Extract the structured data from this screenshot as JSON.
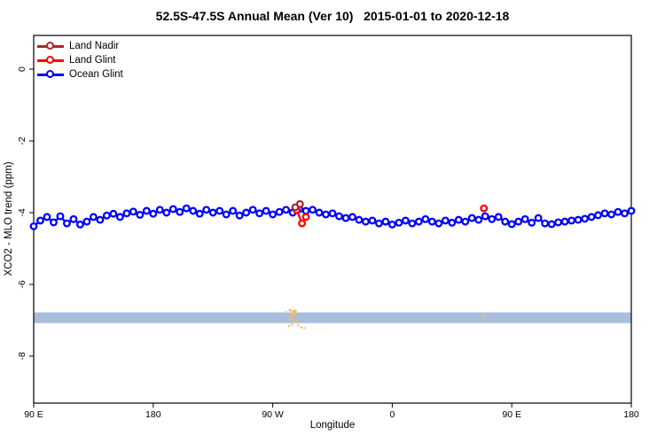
{
  "chart": {
    "title": "52.5S-47.5S Annual Mean (Ver 10)   2015-01-01 to 2020-12-18",
    "xlabel": "Longitude",
    "ylabel": "XCO2 - MLO trend (ppm)"
  },
  "legend": {
    "items": [
      {
        "label": "Land Nadir",
        "color": "#A52A2A"
      },
      {
        "label": "Land Glint",
        "color": "#FF0000"
      },
      {
        "label": "Ocean Glint",
        "color": "#0000FF"
      }
    ]
  },
  "chart_data": {
    "type": "line",
    "title": "52.5S-47.5S Annual Mean (Ver 10)   2015-01-01 to 2020-12-18",
    "xlabel": "Longitude",
    "ylabel": "XCO2 - MLO trend (ppm)",
    "x_axis": {
      "range_deg": [
        0,
        450
      ],
      "ticks_deg": [
        0,
        90,
        180,
        270,
        360,
        450
      ],
      "tick_labels": [
        "90 E",
        "180",
        "90 W",
        "0",
        "90 E",
        "180"
      ],
      "note": "axis wraps eastward starting at 90E"
    },
    "y_axis": {
      "range": [
        -9.31,
        0.94
      ],
      "ticks": [
        0,
        -2,
        -4,
        -6,
        -8
      ],
      "tick_labels": [
        "0",
        "-2",
        "-4",
        "-6",
        "-8"
      ]
    },
    "grid": false,
    "legend_position": "top-left",
    "series": [
      {
        "name": "Ocean Glint",
        "color": "#0000FF",
        "marker": "open-circle",
        "x_deg": [
          0,
          5,
          10,
          15,
          20,
          25,
          30,
          35,
          40,
          45,
          50,
          55,
          60,
          65,
          70,
          75,
          80,
          85,
          90,
          95,
          100,
          105,
          110,
          115,
          120,
          125,
          130,
          135,
          140,
          145,
          150,
          155,
          160,
          165,
          170,
          175,
          180,
          185,
          190,
          195,
          200,
          205,
          210,
          215,
          220,
          225,
          230,
          235,
          240,
          245,
          250,
          255,
          260,
          265,
          270,
          275,
          280,
          285,
          290,
          295,
          300,
          305,
          310,
          315,
          320,
          325,
          330,
          335,
          340,
          345,
          350,
          355,
          360,
          365,
          370,
          375,
          380,
          385,
          390,
          395,
          400,
          405,
          410,
          415,
          420,
          425,
          430,
          435,
          440,
          445,
          450
        ],
        "values": [
          -4.38,
          -4.22,
          -4.12,
          -4.27,
          -4.1,
          -4.3,
          -4.18,
          -4.33,
          -4.25,
          -4.12,
          -4.2,
          -4.08,
          -4.03,
          -4.12,
          -4.02,
          -3.97,
          -4.06,
          -3.95,
          -4.03,
          -3.92,
          -4.0,
          -3.9,
          -3.98,
          -3.88,
          -3.95,
          -4.03,
          -3.92,
          -4.0,
          -3.95,
          -4.05,
          -3.95,
          -4.08,
          -4.0,
          -3.92,
          -4.02,
          -3.95,
          -4.05,
          -3.98,
          -3.92,
          -4.0,
          -3.9,
          -3.95,
          -3.92,
          -4.0,
          -4.05,
          -4.02,
          -4.1,
          -4.15,
          -4.12,
          -4.2,
          -4.25,
          -4.22,
          -4.3,
          -4.25,
          -4.33,
          -4.28,
          -4.22,
          -4.3,
          -4.25,
          -4.18,
          -4.25,
          -4.3,
          -4.22,
          -4.28,
          -4.2,
          -4.25,
          -4.15,
          -4.2,
          -4.1,
          -4.18,
          -4.12,
          -4.25,
          -4.32,
          -4.25,
          -4.18,
          -4.28,
          -4.15,
          -4.3,
          -4.32,
          -4.27,
          -4.25,
          -4.22,
          -4.2,
          -4.17,
          -4.12,
          -4.07,
          -4.02,
          -4.05,
          -3.98,
          -4.02,
          -3.95
        ]
      },
      {
        "name": "Land Nadir",
        "color": "#A52A2A",
        "marker": "open-circle",
        "segments": [
          [
            {
              "deg": 197,
              "val": -3.85
            },
            {
              "deg": 200.5,
              "val": -3.76
            }
          ]
        ]
      },
      {
        "name": "Land Glint",
        "color": "#FF0000",
        "marker": "open-circle",
        "segments": [
          [
            {
              "deg": 198,
              "val": -3.93
            },
            {
              "deg": 202,
              "val": -4.3
            },
            {
              "deg": 205,
              "val": -4.12
            }
          ],
          [
            {
              "deg": 339,
              "val": -3.88
            }
          ]
        ]
      }
    ],
    "band": {
      "color": "#A9BEDD",
      "val_top": -6.78,
      "val_bottom": -7.08,
      "x_range_deg": [
        0,
        450
      ]
    },
    "land_marks": {
      "color": "#F2BE5C",
      "marks": [
        {
          "deg": 190.0,
          "val": -6.77,
          "w": 2,
          "h": 2
        },
        {
          "deg": 192.3,
          "val": -7.16,
          "w": 2,
          "h": 2
        },
        {
          "deg": 193.0,
          "val": -6.72,
          "w": 3,
          "h": 3
        },
        {
          "deg": 193.6,
          "val": -6.95,
          "w": 3,
          "h": 5
        },
        {
          "deg": 194.5,
          "val": -7.12,
          "w": 2,
          "h": 2
        },
        {
          "deg": 195.6,
          "val": -6.8,
          "w": 4,
          "h": 6
        },
        {
          "deg": 197.0,
          "val": -6.74,
          "w": 3,
          "h": 3
        },
        {
          "deg": 197.6,
          "val": -7.0,
          "w": 3,
          "h": 4
        },
        {
          "deg": 199.0,
          "val": -7.14,
          "w": 2,
          "h": 2
        },
        {
          "deg": 201.5,
          "val": -7.2,
          "w": 3,
          "h": 2
        },
        {
          "deg": 204.0,
          "val": -7.22,
          "w": 2,
          "h": 2
        },
        {
          "deg": 338.5,
          "val": -6.86,
          "w": 3,
          "h": 3
        }
      ]
    }
  }
}
